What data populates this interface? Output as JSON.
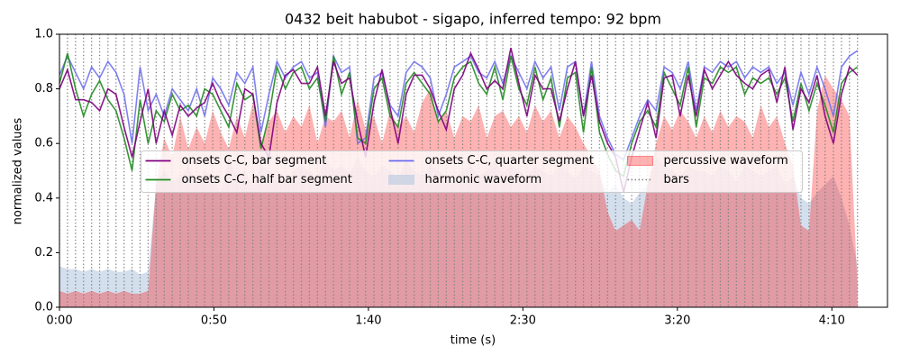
{
  "chart_data": {
    "type": "line",
    "title": "0432 beit habubot - sigapo, inferred tempo: 92 bpm",
    "xlabel": "time (s)",
    "ylabel": "normalized values",
    "xlim": [
      0,
      268
    ],
    "ylim": [
      0,
      1
    ],
    "xticks": [
      {
        "value": 0,
        "label": "0:00"
      },
      {
        "value": 50,
        "label": "0:50"
      },
      {
        "value": 100,
        "label": "1:40"
      },
      {
        "value": 150,
        "label": "2:30"
      },
      {
        "value": 200,
        "label": "3:20"
      },
      {
        "value": 250,
        "label": "4:10"
      }
    ],
    "yticks": [
      {
        "value": 0,
        "label": "0.0"
      },
      {
        "value": 0.2,
        "label": "0.2"
      },
      {
        "value": 0.4,
        "label": "0.4"
      },
      {
        "value": 0.6,
        "label": "0.6"
      },
      {
        "value": 0.8,
        "label": "0.8"
      },
      {
        "value": 1,
        "label": "1.0"
      }
    ],
    "legend": "center",
    "x": [
      0.0,
      2.6,
      5.2,
      7.8,
      10.4,
      13.0,
      15.7,
      18.3,
      20.9,
      23.5,
      26.1,
      28.7,
      31.3,
      33.9,
      36.5,
      39.1,
      41.7,
      44.4,
      47.0,
      49.6,
      52.2,
      54.8,
      57.4,
      60.0,
      62.6,
      65.2,
      67.8,
      70.4,
      73.1,
      75.7,
      78.3,
      80.9,
      83.5,
      86.1,
      88.7,
      91.3,
      93.9,
      96.5,
      99.1,
      101.8,
      104.4,
      107.0,
      109.6,
      112.2,
      114.8,
      117.4,
      120.0,
      122.6,
      125.2,
      127.8,
      130.5,
      133.1,
      135.7,
      138.3,
      140.9,
      143.5,
      146.1,
      148.7,
      151.3,
      153.9,
      156.5,
      159.1,
      161.8,
      164.4,
      167.0,
      169.6,
      172.2,
      174.8,
      177.4,
      180.0,
      182.6,
      185.2,
      187.8,
      190.4,
      193.1,
      195.7,
      198.3,
      200.9,
      203.5,
      206.1,
      208.7,
      211.3,
      213.9,
      216.5,
      219.1,
      221.8,
      224.4,
      227.0,
      229.6,
      232.2,
      234.8,
      237.4,
      240.0,
      242.6,
      245.2,
      247.8,
      250.5,
      253.1,
      255.7,
      258.3
    ],
    "series": [
      {
        "name": "onsets C-C, bar segment",
        "color": "#800080",
        "kind": "line",
        "values": [
          0.8,
          0.87,
          0.76,
          0.76,
          0.75,
          0.72,
          0.8,
          0.78,
          0.66,
          0.55,
          0.68,
          0.8,
          0.6,
          0.72,
          0.63,
          0.74,
          0.7,
          0.73,
          0.75,
          0.82,
          0.75,
          0.7,
          0.64,
          0.8,
          0.78,
          0.6,
          0.55,
          0.75,
          0.85,
          0.87,
          0.82,
          0.82,
          0.88,
          0.7,
          0.9,
          0.82,
          0.84,
          0.68,
          0.55,
          0.75,
          0.87,
          0.73,
          0.6,
          0.78,
          0.85,
          0.85,
          0.8,
          0.72,
          0.65,
          0.8,
          0.85,
          0.93,
          0.87,
          0.8,
          0.83,
          0.8,
          0.95,
          0.82,
          0.7,
          0.85,
          0.8,
          0.8,
          0.68,
          0.8,
          0.9,
          0.7,
          0.85,
          0.68,
          0.6,
          0.55,
          0.42,
          0.55,
          0.65,
          0.75,
          0.62,
          0.84,
          0.85,
          0.7,
          0.85,
          0.7,
          0.87,
          0.8,
          0.85,
          0.9,
          0.85,
          0.82,
          0.8,
          0.85,
          0.87,
          0.75,
          0.88,
          0.65,
          0.8,
          0.75,
          0.85,
          0.7,
          0.6,
          0.78,
          0.88,
          0.85
        ]
      },
      {
        "name": "onsets C-C, half bar segment",
        "color": "#228b22",
        "kind": "line",
        "values": [
          0.82,
          0.93,
          0.8,
          0.7,
          0.78,
          0.83,
          0.76,
          0.72,
          0.62,
          0.5,
          0.76,
          0.6,
          0.72,
          0.68,
          0.78,
          0.72,
          0.74,
          0.7,
          0.8,
          0.78,
          0.72,
          0.66,
          0.82,
          0.76,
          0.78,
          0.58,
          0.7,
          0.88,
          0.8,
          0.86,
          0.88,
          0.8,
          0.84,
          0.68,
          0.92,
          0.78,
          0.86,
          0.62,
          0.6,
          0.8,
          0.84,
          0.7,
          0.66,
          0.82,
          0.86,
          0.82,
          0.78,
          0.68,
          0.72,
          0.84,
          0.88,
          0.9,
          0.82,
          0.78,
          0.88,
          0.76,
          0.92,
          0.8,
          0.74,
          0.88,
          0.76,
          0.84,
          0.66,
          0.84,
          0.86,
          0.64,
          0.88,
          0.64,
          0.56,
          0.5,
          0.48,
          0.6,
          0.68,
          0.72,
          0.66,
          0.86,
          0.8,
          0.74,
          0.88,
          0.66,
          0.84,
          0.82,
          0.88,
          0.86,
          0.88,
          0.78,
          0.84,
          0.82,
          0.84,
          0.78,
          0.84,
          0.68,
          0.82,
          0.72,
          0.82,
          0.74,
          0.64,
          0.82,
          0.86,
          0.88
        ]
      },
      {
        "name": "onsets C-C, quarter segment",
        "color": "#6b6bef",
        "kind": "line",
        "values": [
          0.85,
          0.92,
          0.86,
          0.8,
          0.88,
          0.84,
          0.9,
          0.86,
          0.78,
          0.6,
          0.88,
          0.72,
          0.78,
          0.7,
          0.8,
          0.76,
          0.72,
          0.8,
          0.7,
          0.84,
          0.8,
          0.74,
          0.86,
          0.82,
          0.88,
          0.64,
          0.78,
          0.9,
          0.84,
          0.88,
          0.9,
          0.84,
          0.86,
          0.66,
          0.92,
          0.86,
          0.88,
          0.6,
          0.62,
          0.84,
          0.86,
          0.74,
          0.7,
          0.86,
          0.9,
          0.88,
          0.84,
          0.7,
          0.78,
          0.88,
          0.9,
          0.92,
          0.86,
          0.84,
          0.9,
          0.82,
          0.92,
          0.86,
          0.8,
          0.9,
          0.84,
          0.88,
          0.72,
          0.88,
          0.9,
          0.7,
          0.9,
          0.7,
          0.62,
          0.56,
          0.54,
          0.62,
          0.7,
          0.76,
          0.72,
          0.88,
          0.86,
          0.8,
          0.9,
          0.72,
          0.88,
          0.86,
          0.9,
          0.88,
          0.9,
          0.84,
          0.88,
          0.86,
          0.88,
          0.82,
          0.86,
          0.74,
          0.86,
          0.78,
          0.88,
          0.8,
          0.7,
          0.88,
          0.92,
          0.94
        ]
      },
      {
        "name": "harmonic waveform",
        "color": "#b0c4de",
        "kind": "area",
        "values": [
          0.15,
          0.14,
          0.14,
          0.13,
          0.14,
          0.13,
          0.14,
          0.13,
          0.13,
          0.14,
          0.12,
          0.13,
          0.45,
          0.5,
          0.46,
          0.48,
          0.52,
          0.45,
          0.5,
          0.48,
          0.42,
          0.55,
          0.48,
          0.5,
          0.44,
          0.52,
          0.5,
          0.48,
          0.46,
          0.5,
          0.52,
          0.5,
          0.48,
          0.55,
          0.5,
          0.52,
          0.49,
          0.55,
          0.5,
          0.48,
          0.52,
          0.5,
          0.47,
          0.54,
          0.5,
          0.48,
          0.52,
          0.5,
          0.48,
          0.46,
          0.5,
          0.52,
          0.48,
          0.5,
          0.54,
          0.49,
          0.52,
          0.5,
          0.48,
          0.52,
          0.5,
          0.48,
          0.52,
          0.5,
          0.47,
          0.52,
          0.5,
          0.48,
          0.42,
          0.45,
          0.4,
          0.38,
          0.42,
          0.45,
          0.55,
          0.52,
          0.5,
          0.48,
          0.52,
          0.5,
          0.5,
          0.48,
          0.52,
          0.5,
          0.46,
          0.52,
          0.5,
          0.48,
          0.5,
          0.52,
          0.45,
          0.48,
          0.4,
          0.38,
          0.42,
          0.45,
          0.48,
          0.4,
          0.3,
          0.15
        ]
      },
      {
        "name": "percussive waveform",
        "color": "#ff0000",
        "kind": "area",
        "values": [
          0.06,
          0.05,
          0.06,
          0.05,
          0.06,
          0.05,
          0.06,
          0.05,
          0.06,
          0.05,
          0.05,
          0.06,
          0.45,
          0.62,
          0.55,
          0.7,
          0.58,
          0.66,
          0.6,
          0.72,
          0.64,
          0.58,
          0.7,
          0.62,
          0.75,
          0.6,
          0.68,
          0.72,
          0.64,
          0.7,
          0.66,
          0.74,
          0.6,
          0.7,
          0.68,
          0.72,
          0.62,
          0.76,
          0.65,
          0.7,
          0.6,
          0.72,
          0.66,
          0.7,
          0.64,
          0.75,
          0.8,
          0.68,
          0.72,
          0.62,
          0.7,
          0.68,
          0.74,
          0.62,
          0.7,
          0.72,
          0.66,
          0.7,
          0.64,
          0.74,
          0.68,
          0.72,
          0.62,
          0.7,
          0.66,
          0.6,
          0.55,
          0.5,
          0.35,
          0.28,
          0.3,
          0.32,
          0.28,
          0.45,
          0.6,
          0.7,
          0.65,
          0.72,
          0.68,
          0.62,
          0.7,
          0.64,
          0.72,
          0.66,
          0.7,
          0.68,
          0.62,
          0.74,
          0.66,
          0.7,
          0.6,
          0.52,
          0.3,
          0.28,
          0.72,
          0.85,
          0.8,
          0.76,
          0.7,
          0.08
        ]
      },
      {
        "name": "bars",
        "color": "#808080",
        "kind": "vline"
      }
    ]
  }
}
